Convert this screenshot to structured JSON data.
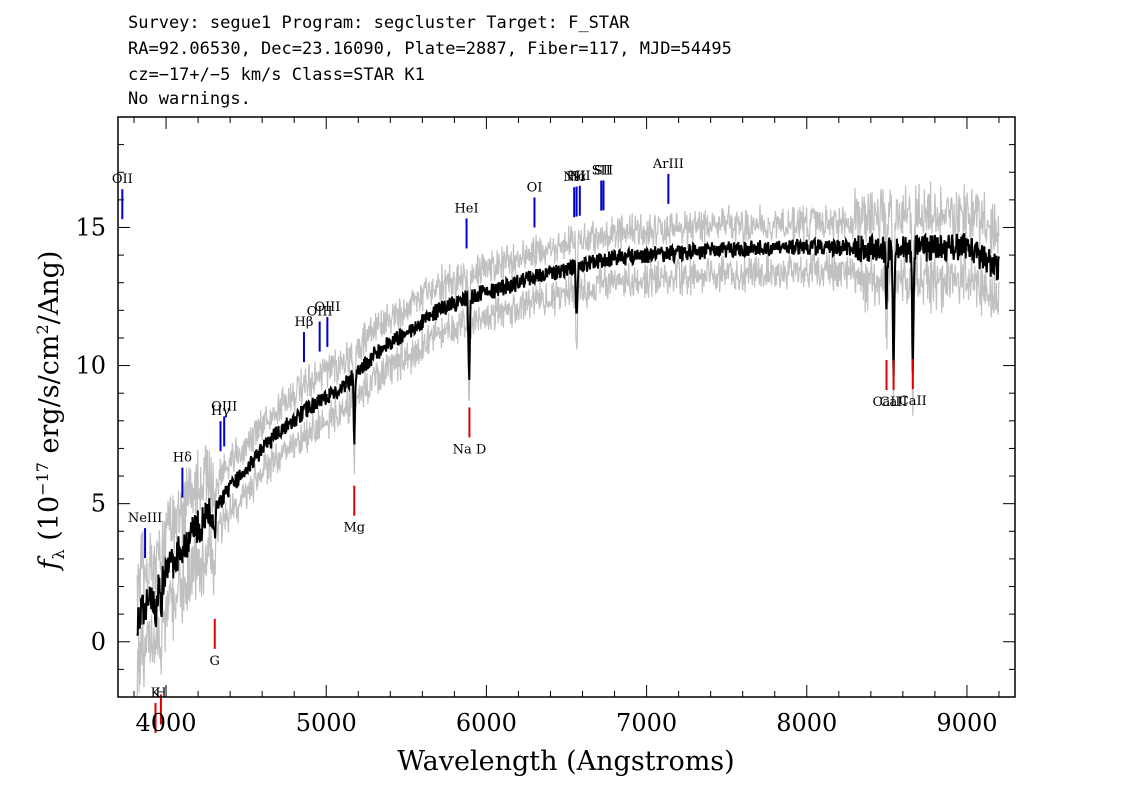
{
  "header": {
    "line1": "Survey: segue1 Program: segcluster Target: F_STAR",
    "line2": "RA=92.06530, Dec=23.16090, Plate=2887, Fiber=117, MJD=54495",
    "line3": "cz=−17+/−5 km/s Class=STAR K1",
    "line4": "No warnings."
  },
  "chart_data": {
    "type": "line",
    "xlabel": "Wavelength (Angstroms)",
    "ylabel": "f_λ (10^-17 erg/s/cm^2/Ang)",
    "xlim": [
      3700,
      9300
    ],
    "ylim": [
      -2,
      19
    ],
    "xticks": [
      4000,
      5000,
      6000,
      7000,
      8000,
      9000
    ],
    "yticks": [
      0,
      5,
      10,
      15
    ],
    "colors": {
      "flux": "#000000",
      "noise": "#c0c0c0",
      "emission": "#0000cc",
      "absorption": "#dd0000"
    },
    "continuum": [
      {
        "x": 3820,
        "y": 0.8
      },
      {
        "x": 3900,
        "y": 1.5
      },
      {
        "x": 3960,
        "y": 2.0
      },
      {
        "x": 4050,
        "y": 3.0
      },
      {
        "x": 4150,
        "y": 3.8
      },
      {
        "x": 4300,
        "y": 4.8
      },
      {
        "x": 4500,
        "y": 6.3
      },
      {
        "x": 4700,
        "y": 7.6
      },
      {
        "x": 4900,
        "y": 8.5
      },
      {
        "x": 5100,
        "y": 9.2
      },
      {
        "x": 5300,
        "y": 10.4
      },
      {
        "x": 5500,
        "y": 11.2
      },
      {
        "x": 5700,
        "y": 12.0
      },
      {
        "x": 5900,
        "y": 12.5
      },
      {
        "x": 6100,
        "y": 12.8
      },
      {
        "x": 6300,
        "y": 13.2
      },
      {
        "x": 6500,
        "y": 13.5
      },
      {
        "x": 6700,
        "y": 13.8
      },
      {
        "x": 7000,
        "y": 14.0
      },
      {
        "x": 7500,
        "y": 14.2
      },
      {
        "x": 8000,
        "y": 14.3
      },
      {
        "x": 8500,
        "y": 14.2
      },
      {
        "x": 9000,
        "y": 14.3
      },
      {
        "x": 9200,
        "y": 13.5
      }
    ],
    "absorption_dips": [
      {
        "x": 3934,
        "depth": 1.5
      },
      {
        "x": 3968,
        "depth": 1.2
      },
      {
        "x": 4305,
        "depth": 1.2
      },
      {
        "x": 5175,
        "depth": 2.5
      },
      {
        "x": 5892,
        "depth": 3.0
      },
      {
        "x": 6563,
        "depth": 2.0
      },
      {
        "x": 8498,
        "depth": 2.0
      },
      {
        "x": 8542,
        "depth": 4.5
      },
      {
        "x": 8662,
        "depth": 4.0
      }
    ],
    "emission_lines": [
      {
        "name": "OII",
        "x": 3727
      },
      {
        "name": "NeIII",
        "x": 3869
      },
      {
        "name": "Hδ",
        "x": 4102
      },
      {
        "name": "Hγ",
        "x": 4340
      },
      {
        "name": "OIII",
        "x": 4363
      },
      {
        "name": "Hβ",
        "x": 4861
      },
      {
        "name": "OIII",
        "x": 4959
      },
      {
        "name": "OIII",
        "x": 5007
      },
      {
        "name": "HeI",
        "x": 5876
      },
      {
        "name": "OI",
        "x": 6300
      },
      {
        "name": "NII",
        "x": 6548
      },
      {
        "name": "Hα",
        "x": 6563
      },
      {
        "name": "NII",
        "x": 6583
      },
      {
        "name": "SII",
        "x": 6717
      },
      {
        "name": "SII",
        "x": 6731
      },
      {
        "name": "ArIII",
        "x": 7136
      }
    ],
    "absorption_lines": [
      {
        "name": "K",
        "x": 3934
      },
      {
        "name": "H",
        "x": 3968
      },
      {
        "name": "G",
        "x": 4304
      },
      {
        "name": "Mg",
        "x": 5175
      },
      {
        "name": "Na D",
        "x": 5894
      },
      {
        "name": "CaII",
        "x": 8498
      },
      {
        "name": "CaII",
        "x": 8542
      },
      {
        "name": "CaII",
        "x": 8662
      }
    ]
  }
}
